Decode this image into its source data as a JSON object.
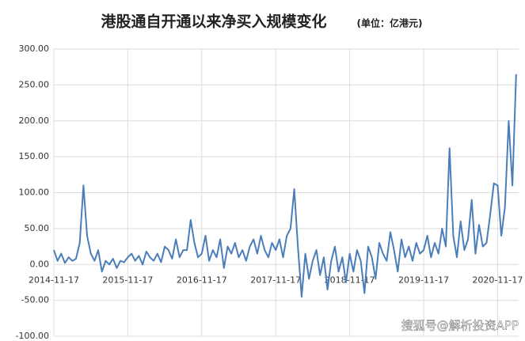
{
  "chart_data": {
    "type": "line",
    "title": "港股通自开通以来净买入规模变化",
    "subtitle": "(单位：亿港元)",
    "watermark": "搜狐号@解析投资APP",
    "color": "#4a7ebb",
    "grid": true,
    "categories": [
      "2014-11-17",
      null,
      null,
      null,
      null,
      null,
      null,
      null,
      null,
      null,
      null,
      null,
      null,
      null,
      null,
      null,
      null,
      null,
      null,
      null,
      "2015-11-17",
      null,
      null,
      null,
      null,
      null,
      null,
      null,
      null,
      null,
      null,
      null,
      null,
      null,
      null,
      null,
      null,
      null,
      null,
      null,
      "2016-11-17",
      null,
      null,
      null,
      null,
      null,
      null,
      null,
      null,
      null,
      null,
      null,
      null,
      null,
      null,
      null,
      null,
      null,
      null,
      null,
      "2017-11-17",
      null,
      null,
      null,
      null,
      null,
      null,
      null,
      null,
      null,
      null,
      null,
      null,
      null,
      null,
      null,
      null,
      null,
      null,
      null,
      "2018-11-17",
      null,
      null,
      null,
      null,
      null,
      null,
      null,
      null,
      null,
      null,
      null,
      null,
      null,
      null,
      null,
      null,
      null,
      null,
      null,
      "2019-11-17",
      null,
      null,
      null,
      null,
      null,
      null,
      null,
      null,
      null,
      null,
      null,
      null,
      null,
      null,
      null,
      null,
      null,
      null,
      null,
      "2020-11-17",
      null,
      null,
      null,
      null,
      null
    ],
    "values": [
      20,
      5,
      15,
      2,
      10,
      5,
      8,
      30,
      110,
      40,
      15,
      5,
      20,
      -10,
      5,
      0,
      8,
      -5,
      5,
      3,
      10,
      15,
      5,
      12,
      0,
      18,
      10,
      5,
      15,
      3,
      25,
      20,
      8,
      35,
      10,
      20,
      20,
      62,
      30,
      10,
      15,
      40,
      5,
      20,
      10,
      35,
      -5,
      25,
      15,
      30,
      10,
      20,
      5,
      25,
      35,
      15,
      40,
      20,
      10,
      30,
      20,
      35,
      10,
      40,
      50,
      105,
      25,
      -45,
      15,
      -20,
      5,
      20,
      -15,
      10,
      -35,
      5,
      25,
      -10,
      10,
      -25,
      15,
      -10,
      20,
      5,
      -40,
      25,
      10,
      -20,
      30,
      15,
      5,
      45,
      20,
      -10,
      35,
      10,
      25,
      5,
      30,
      15,
      20,
      40,
      10,
      30,
      15,
      50,
      25,
      162,
      40,
      10,
      60,
      20,
      35,
      90,
      15,
      55,
      25,
      30,
      70,
      113,
      110,
      40,
      80,
      200,
      110,
      265
    ],
    "ylim": [
      -100,
      300
    ],
    "yticks": [
      {
        "value": -100,
        "label": "-100.00"
      },
      {
        "value": -50,
        "label": "-50.00"
      },
      {
        "value": 0,
        "label": "0.00"
      },
      {
        "value": 50,
        "label": "50.00"
      },
      {
        "value": 100,
        "label": "100.00"
      },
      {
        "value": 150,
        "label": "150.00"
      },
      {
        "value": 200,
        "label": "200.00"
      },
      {
        "value": 250,
        "label": "250.00"
      },
      {
        "value": 300,
        "label": "300.00"
      }
    ]
  }
}
